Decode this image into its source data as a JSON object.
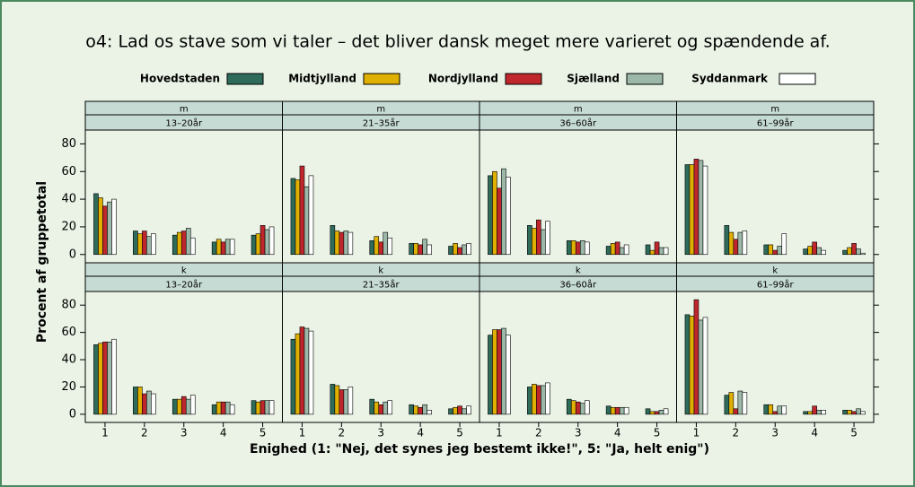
{
  "chart_data": {
    "type": "bar",
    "title": "o4: Lad os stave som vi taler – det bliver dansk meget mere varieret og spændende af.",
    "xlabel": "Enighed (1: \"Nej, det synes jeg bestemt ikke!\", 5: \"Ja, helt enig\")",
    "ylabel": "Procent af gruppetotal",
    "categories": [
      "1",
      "2",
      "3",
      "4",
      "5"
    ],
    "series": [
      {
        "name": "Hovedstaden",
        "color": "#2e6b5a"
      },
      {
        "name": "Midtjylland",
        "color": "#e0b000"
      },
      {
        "name": "Nordjylland",
        "color": "#c0272d"
      },
      {
        "name": "Sjælland",
        "color": "#9bb8a8"
      },
      {
        "name": "Syddanmark",
        "color": "#ffffff"
      }
    ],
    "ylim": [
      -6,
      90
    ],
    "yticks": [
      0,
      20,
      40,
      60,
      80
    ],
    "panels": [
      {
        "strips": [
          "m",
          "13–20år"
        ],
        "values": [
          [
            44,
            17,
            14,
            9,
            14
          ],
          [
            41,
            15,
            16,
            11,
            15
          ],
          [
            35,
            17,
            17,
            9,
            21
          ],
          [
            38,
            13,
            19,
            11,
            18
          ],
          [
            40,
            15,
            12,
            11,
            20
          ]
        ]
      },
      {
        "strips": [
          "m",
          "21–35år"
        ],
        "values": [
          [
            55,
            21,
            10,
            8,
            6
          ],
          [
            54,
            17,
            13,
            8,
            8
          ],
          [
            64,
            16,
            9,
            7,
            5
          ],
          [
            49,
            17,
            16,
            11,
            7
          ],
          [
            57,
            16,
            12,
            7,
            8
          ]
        ]
      },
      {
        "strips": [
          "m",
          "36–60år"
        ],
        "values": [
          [
            57,
            21,
            10,
            6,
            7
          ],
          [
            60,
            19,
            10,
            8,
            3
          ],
          [
            48,
            25,
            9,
            9,
            9
          ],
          [
            62,
            18,
            10,
            5,
            5
          ],
          [
            56,
            24,
            9,
            7,
            5
          ]
        ]
      },
      {
        "strips": [
          "m",
          "61–99år"
        ],
        "values": [
          [
            65,
            21,
            7,
            4,
            3
          ],
          [
            65,
            16,
            7,
            6,
            5
          ],
          [
            69,
            11,
            3,
            9,
            8
          ],
          [
            68,
            16,
            6,
            5,
            4
          ],
          [
            64,
            17,
            15,
            3,
            1
          ]
        ]
      },
      {
        "strips": [
          "k",
          "13–20år"
        ],
        "values": [
          [
            51,
            20,
            11,
            7,
            10
          ],
          [
            52,
            20,
            11,
            9,
            9
          ],
          [
            53,
            15,
            13,
            9,
            10
          ],
          [
            53,
            17,
            11,
            9,
            10
          ],
          [
            55,
            15,
            14,
            7,
            10
          ]
        ]
      },
      {
        "strips": [
          "k",
          "21–35år"
        ],
        "values": [
          [
            55,
            22,
            11,
            7,
            4
          ],
          [
            59,
            21,
            9,
            6,
            5
          ],
          [
            64,
            18,
            7,
            5,
            6
          ],
          [
            63,
            18,
            9,
            7,
            4
          ],
          [
            61,
            20,
            10,
            3,
            6
          ]
        ]
      },
      {
        "strips": [
          "k",
          "36–60år"
        ],
        "values": [
          [
            58,
            20,
            11,
            6,
            4
          ],
          [
            62,
            22,
            10,
            5,
            2
          ],
          [
            62,
            21,
            9,
            5,
            2
          ],
          [
            63,
            21,
            8,
            5,
            3
          ],
          [
            58,
            23,
            10,
            5,
            4
          ]
        ]
      },
      {
        "strips": [
          "k",
          "61–99år"
        ],
        "values": [
          [
            73,
            14,
            7,
            2,
            3
          ],
          [
            72,
            16,
            7,
            2,
            3
          ],
          [
            84,
            4,
            2,
            6,
            2
          ],
          [
            69,
            17,
            6,
            3,
            4
          ],
          [
            71,
            16,
            6,
            3,
            2
          ]
        ]
      }
    ]
  }
}
